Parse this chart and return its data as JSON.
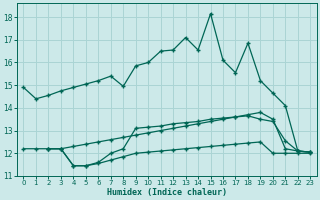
{
  "xlabel": "Humidex (Indice chaleur)",
  "bg_color": "#cce9e9",
  "grid_color": "#aad4d4",
  "line_color": "#006655",
  "xlim": [
    -0.5,
    23.5
  ],
  "ylim": [
    11,
    18.6
  ],
  "yticks": [
    11,
    12,
    13,
    14,
    15,
    16,
    17,
    18
  ],
  "xticks": [
    0,
    1,
    2,
    3,
    4,
    5,
    6,
    7,
    8,
    9,
    10,
    11,
    12,
    13,
    14,
    15,
    16,
    17,
    18,
    19,
    20,
    21,
    22,
    23
  ],
  "line1_x": [
    0,
    1,
    2,
    3,
    4,
    5,
    6,
    7,
    8,
    9,
    10,
    11,
    12,
    13,
    14,
    15,
    16,
    17,
    18,
    19,
    20,
    21,
    22,
    23
  ],
  "line1_y": [
    14.9,
    14.4,
    14.55,
    14.75,
    14.9,
    15.05,
    15.2,
    15.4,
    14.95,
    15.85,
    16.0,
    16.5,
    16.55,
    17.1,
    16.55,
    18.15,
    16.1,
    15.55,
    16.85,
    15.2,
    14.65,
    14.1,
    12.1,
    12.05
  ],
  "line2_x": [
    0,
    1,
    2,
    3,
    4,
    5,
    6,
    7,
    8,
    9,
    10,
    11,
    12,
    13,
    14,
    15,
    16,
    17,
    18,
    19,
    20,
    21,
    22,
    23
  ],
  "line2_y": [
    12.2,
    12.2,
    12.2,
    12.2,
    12.3,
    12.4,
    12.5,
    12.6,
    12.7,
    12.8,
    12.9,
    13.0,
    13.1,
    13.2,
    13.3,
    13.4,
    13.5,
    13.6,
    13.7,
    13.8,
    13.5,
    12.2,
    12.1,
    12.05
  ],
  "line3_x": [
    2,
    3,
    4,
    5,
    6,
    7,
    8,
    9,
    10,
    11,
    12,
    13,
    14,
    15,
    16,
    17,
    18,
    19,
    20,
    21,
    22,
    23
  ],
  "line3_y": [
    12.2,
    12.2,
    11.45,
    11.45,
    11.6,
    12.0,
    12.2,
    13.1,
    13.15,
    13.2,
    13.3,
    13.35,
    13.4,
    13.5,
    13.55,
    13.6,
    13.65,
    13.5,
    13.4,
    12.55,
    12.1,
    12.05
  ],
  "line4_x": [
    2,
    3,
    4,
    5,
    6,
    7,
    8,
    9,
    10,
    11,
    12,
    13,
    14,
    15,
    16,
    17,
    18,
    19,
    20,
    21,
    22,
    23
  ],
  "line4_y": [
    12.2,
    12.2,
    11.45,
    11.45,
    11.55,
    11.7,
    11.85,
    12.0,
    12.05,
    12.1,
    12.15,
    12.2,
    12.25,
    12.3,
    12.35,
    12.4,
    12.45,
    12.5,
    12.0,
    12.0,
    12.0,
    12.0
  ]
}
